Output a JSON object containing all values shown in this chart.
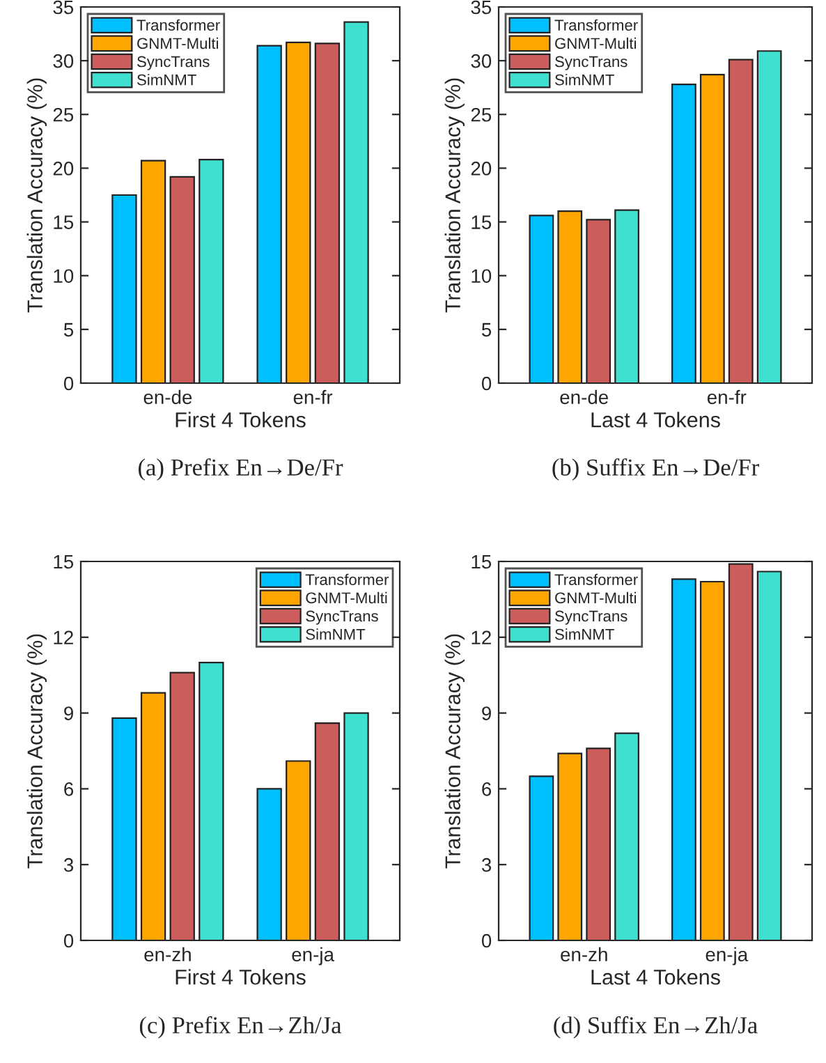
{
  "chart_data": [
    {
      "type": "bar",
      "xlabel": "First 4 Tokens",
      "ylabel": "Translation Accuracy (%)",
      "annotations": [
        "(a) Prefix En→De/Fr"
      ],
      "categories": [
        "en-de",
        "en-fr"
      ],
      "ylim": [
        0,
        35
      ],
      "yticks": [
        0,
        5,
        10,
        15,
        20,
        25,
        30,
        35
      ],
      "legend": "top left",
      "series": [
        {
          "name": "Transformer",
          "color": "#00bfff",
          "values": [
            17.5,
            31.4
          ]
        },
        {
          "name": "GNMT-Multi",
          "color": "#ffa500",
          "values": [
            20.7,
            31.7
          ]
        },
        {
          "name": "SyncTrans",
          "color": "#cd5c5c",
          "values": [
            19.2,
            31.6
          ]
        },
        {
          "name": "SimNMT",
          "color": "#40e0d0",
          "values": [
            20.8,
            33.6
          ]
        }
      ]
    },
    {
      "type": "bar",
      "xlabel": "Last 4 Tokens",
      "ylabel": "Translation Accuracy (%)",
      "annotations": [
        "(b) Suffix En→De/Fr"
      ],
      "categories": [
        "en-de",
        "en-fr"
      ],
      "ylim": [
        0,
        35
      ],
      "yticks": [
        0,
        5,
        10,
        15,
        20,
        25,
        30,
        35
      ],
      "legend": "top left",
      "series": [
        {
          "name": "Transformer",
          "color": "#00bfff",
          "values": [
            15.6,
            27.8
          ]
        },
        {
          "name": "GNMT-Multi",
          "color": "#ffa500",
          "values": [
            16.0,
            28.7
          ]
        },
        {
          "name": "SyncTrans",
          "color": "#cd5c5c",
          "values": [
            15.2,
            30.1
          ]
        },
        {
          "name": "SimNMT",
          "color": "#40e0d0",
          "values": [
            16.1,
            30.9
          ]
        }
      ]
    },
    {
      "type": "bar",
      "xlabel": "First 4 Tokens",
      "ylabel": "Translation Accuracy (%)",
      "annotations": [
        "(c) Prefix En→Zh/Ja"
      ],
      "categories": [
        "en-zh",
        "en-ja"
      ],
      "ylim": [
        0,
        15
      ],
      "yticks": [
        0,
        3,
        6,
        9,
        12,
        15
      ],
      "legend": "top right",
      "series": [
        {
          "name": "Transformer",
          "color": "#00bfff",
          "values": [
            8.8,
            6.0
          ]
        },
        {
          "name": "GNMT-Multi",
          "color": "#ffa500",
          "values": [
            9.8,
            7.1
          ]
        },
        {
          "name": "SyncTrans",
          "color": "#cd5c5c",
          "values": [
            10.6,
            8.6
          ]
        },
        {
          "name": "SimNMT",
          "color": "#40e0d0",
          "values": [
            11.0,
            9.0
          ]
        }
      ]
    },
    {
      "type": "bar",
      "xlabel": "Last 4 Tokens",
      "ylabel": "Translation Accuracy (%)",
      "annotations": [
        "(d) Suffix En→Zh/Ja"
      ],
      "categories": [
        "en-zh",
        "en-ja"
      ],
      "ylim": [
        0,
        15
      ],
      "yticks": [
        0,
        3,
        6,
        9,
        12,
        15
      ],
      "legend": "top left",
      "series": [
        {
          "name": "Transformer",
          "color": "#00bfff",
          "values": [
            6.5,
            14.3
          ]
        },
        {
          "name": "GNMT-Multi",
          "color": "#ffa500",
          "values": [
            7.4,
            14.2
          ]
        },
        {
          "name": "SyncTrans",
          "color": "#cd5c5c",
          "values": [
            7.6,
            14.9
          ]
        },
        {
          "name": "SimNMT",
          "color": "#40e0d0",
          "values": [
            8.2,
            14.6
          ]
        }
      ]
    }
  ]
}
